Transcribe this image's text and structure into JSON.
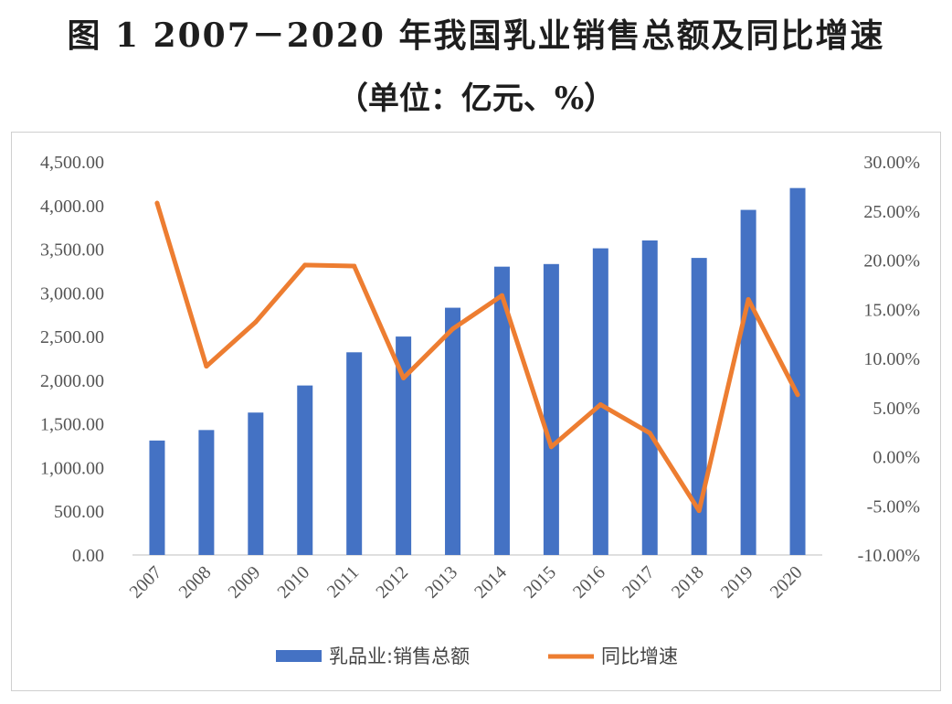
{
  "page": {
    "title": "图 1   2007－2020 年我国乳业销售总额及同比增速",
    "subtitle": "（单位：亿元、%）"
  },
  "chart_data": {
    "type": "bar",
    "categories": [
      "2007",
      "2008",
      "2009",
      "2010",
      "2011",
      "2012",
      "2013",
      "2014",
      "2015",
      "2016",
      "2017",
      "2018",
      "2019",
      "2020"
    ],
    "series": [
      {
        "name": "乳品业:销售总额",
        "type": "bar",
        "axis": "left",
        "color": "#4472C4",
        "values": [
          1310,
          1430,
          1630,
          1940,
          2320,
          2500,
          2830,
          3300,
          3330,
          3510,
          3600,
          3400,
          3950,
          4200
        ]
      },
      {
        "name": "同比增速",
        "type": "line",
        "axis": "right",
        "color": "#ED7D31",
        "values": [
          25.8,
          9.2,
          13.7,
          19.5,
          19.4,
          8.0,
          13.0,
          16.4,
          1.0,
          5.3,
          2.4,
          -5.5,
          16.0,
          6.3
        ]
      }
    ],
    "y_left": {
      "ylim": [
        0,
        4500
      ],
      "ticks": [
        0,
        500,
        1000,
        1500,
        2000,
        2500,
        3000,
        3500,
        4000,
        4500
      ],
      "tick_labels": [
        "0.00",
        "500.00",
        "1,000.00",
        "1,500.00",
        "2,000.00",
        "2,500.00",
        "3,000.00",
        "3,500.00",
        "4,000.00",
        "4,500.00"
      ]
    },
    "y_right": {
      "ylim": [
        -10,
        30
      ],
      "ticks": [
        -10,
        -5,
        0,
        5,
        10,
        15,
        20,
        25,
        30
      ],
      "tick_labels": [
        "-10.00%",
        "-5.00%",
        "0.00%",
        "5.00%",
        "10.00%",
        "15.00%",
        "20.00%",
        "25.00%",
        "30.00%"
      ]
    },
    "grid": false,
    "legend": "bottom"
  }
}
